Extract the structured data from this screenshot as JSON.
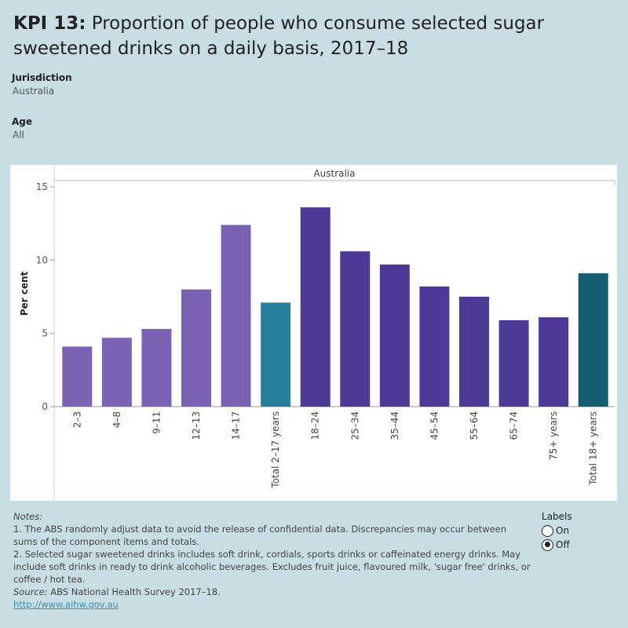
{
  "header": {
    "kpi_label": "KPI 13:",
    "title": "Proportion of people who consume selected sugar sweetened drinks on a daily basis, 2017–18"
  },
  "filters": {
    "jurisdiction_label": "Jurisdiction",
    "jurisdiction_value": "Australia",
    "age_label": "Age",
    "age_value": "All"
  },
  "chart_data": {
    "type": "bar",
    "panel_label": "Australia",
    "ylabel": "Per cent",
    "xlabel": "",
    "ylim": [
      0,
      15
    ],
    "yticks": [
      0,
      5,
      10,
      15
    ],
    "categories": [
      "2–3",
      "4–8",
      "9–11",
      "12–13",
      "14–17",
      "Total 2–17 years",
      "18–24",
      "25–34",
      "35–44",
      "45–54",
      "55–64",
      "65–74",
      "75+ years",
      "Total 18+ years"
    ],
    "values": [
      4.1,
      4.7,
      5.3,
      8.0,
      12.4,
      7.1,
      13.6,
      10.6,
      9.7,
      8.2,
      7.5,
      5.9,
      6.1,
      9.1
    ],
    "colors": [
      "#7b62b5",
      "#7b62b5",
      "#7b62b5",
      "#7b62b5",
      "#7b62b5",
      "#277f9b",
      "#4e3996",
      "#4e3996",
      "#4e3996",
      "#4e3996",
      "#4e3996",
      "#4e3996",
      "#4e3996",
      "#135f71"
    ],
    "grid": false
  },
  "notes": {
    "heading": "Notes:",
    "note1": "1. The ABS randomly adjust data to avoid the release of confidential data. Discrepancies may occur between sums of the component items and totals.",
    "note2": "2. Selected sugar sweetened drinks includes soft drink, cordials, sports drinks or caffeinated energy drinks. May include soft drinks in ready to drink alcoholic beverages. Excludes fruit juice, flavoured milk, 'sugar free' drinks, or coffee / hot tea.",
    "source_label": "Source:",
    "source_text": " ABS National Health Survey 2017–18.",
    "link": "http://www.aihw.gov.au"
  },
  "labels_toggle": {
    "title": "Labels",
    "on": "On",
    "off": "Off",
    "selected": "off"
  }
}
